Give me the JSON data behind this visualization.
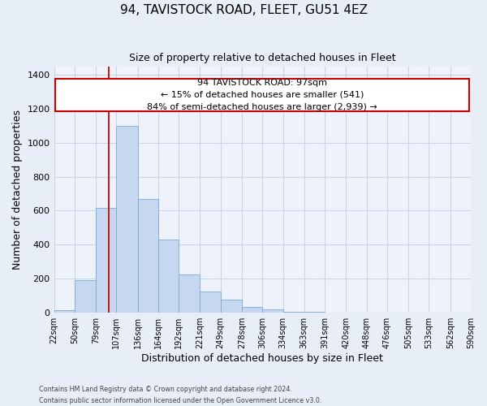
{
  "title1": "94, TAVISTOCK ROAD, FLEET, GU51 4EZ",
  "title2": "Size of property relative to detached houses in Fleet",
  "xlabel": "Distribution of detached houses by size in Fleet",
  "ylabel": "Number of detached properties",
  "bar_edges": [
    22,
    50,
    79,
    107,
    136,
    164,
    192,
    221,
    249,
    278,
    306,
    334,
    363,
    391,
    420,
    448,
    476,
    505,
    533,
    562,
    590
  ],
  "bar_heights": [
    15,
    190,
    615,
    1100,
    670,
    430,
    225,
    125,
    75,
    30,
    20,
    5,
    2,
    0,
    0,
    0,
    0,
    0,
    0,
    0
  ],
  "bar_color": "#c5d8f0",
  "bar_edge_color": "#7baad4",
  "property_line_x": 97,
  "ann_line1": "94 TAVISTOCK ROAD: 97sqm",
  "ann_line2": "← 15% of detached houses are smaller (541)",
  "ann_line3": "84% of semi-detached houses are larger (2,939) →",
  "ylim": [
    0,
    1450
  ],
  "yticks": [
    0,
    200,
    400,
    600,
    800,
    1000,
    1200,
    1400
  ],
  "tick_labels": [
    "22sqm",
    "50sqm",
    "79sqm",
    "107sqm",
    "136sqm",
    "164sqm",
    "192sqm",
    "221sqm",
    "249sqm",
    "278sqm",
    "306sqm",
    "334sqm",
    "363sqm",
    "391sqm",
    "420sqm",
    "448sqm",
    "476sqm",
    "505sqm",
    "533sqm",
    "562sqm",
    "590sqm"
  ],
  "footer1": "Contains HM Land Registry data © Crown copyright and database right 2024.",
  "footer2": "Contains public sector information licensed under the Open Government Licence v3.0.",
  "grid_color": "#c8d4e8",
  "background_color": "#e8eef8",
  "plot_bg_color": "#eef2fb"
}
